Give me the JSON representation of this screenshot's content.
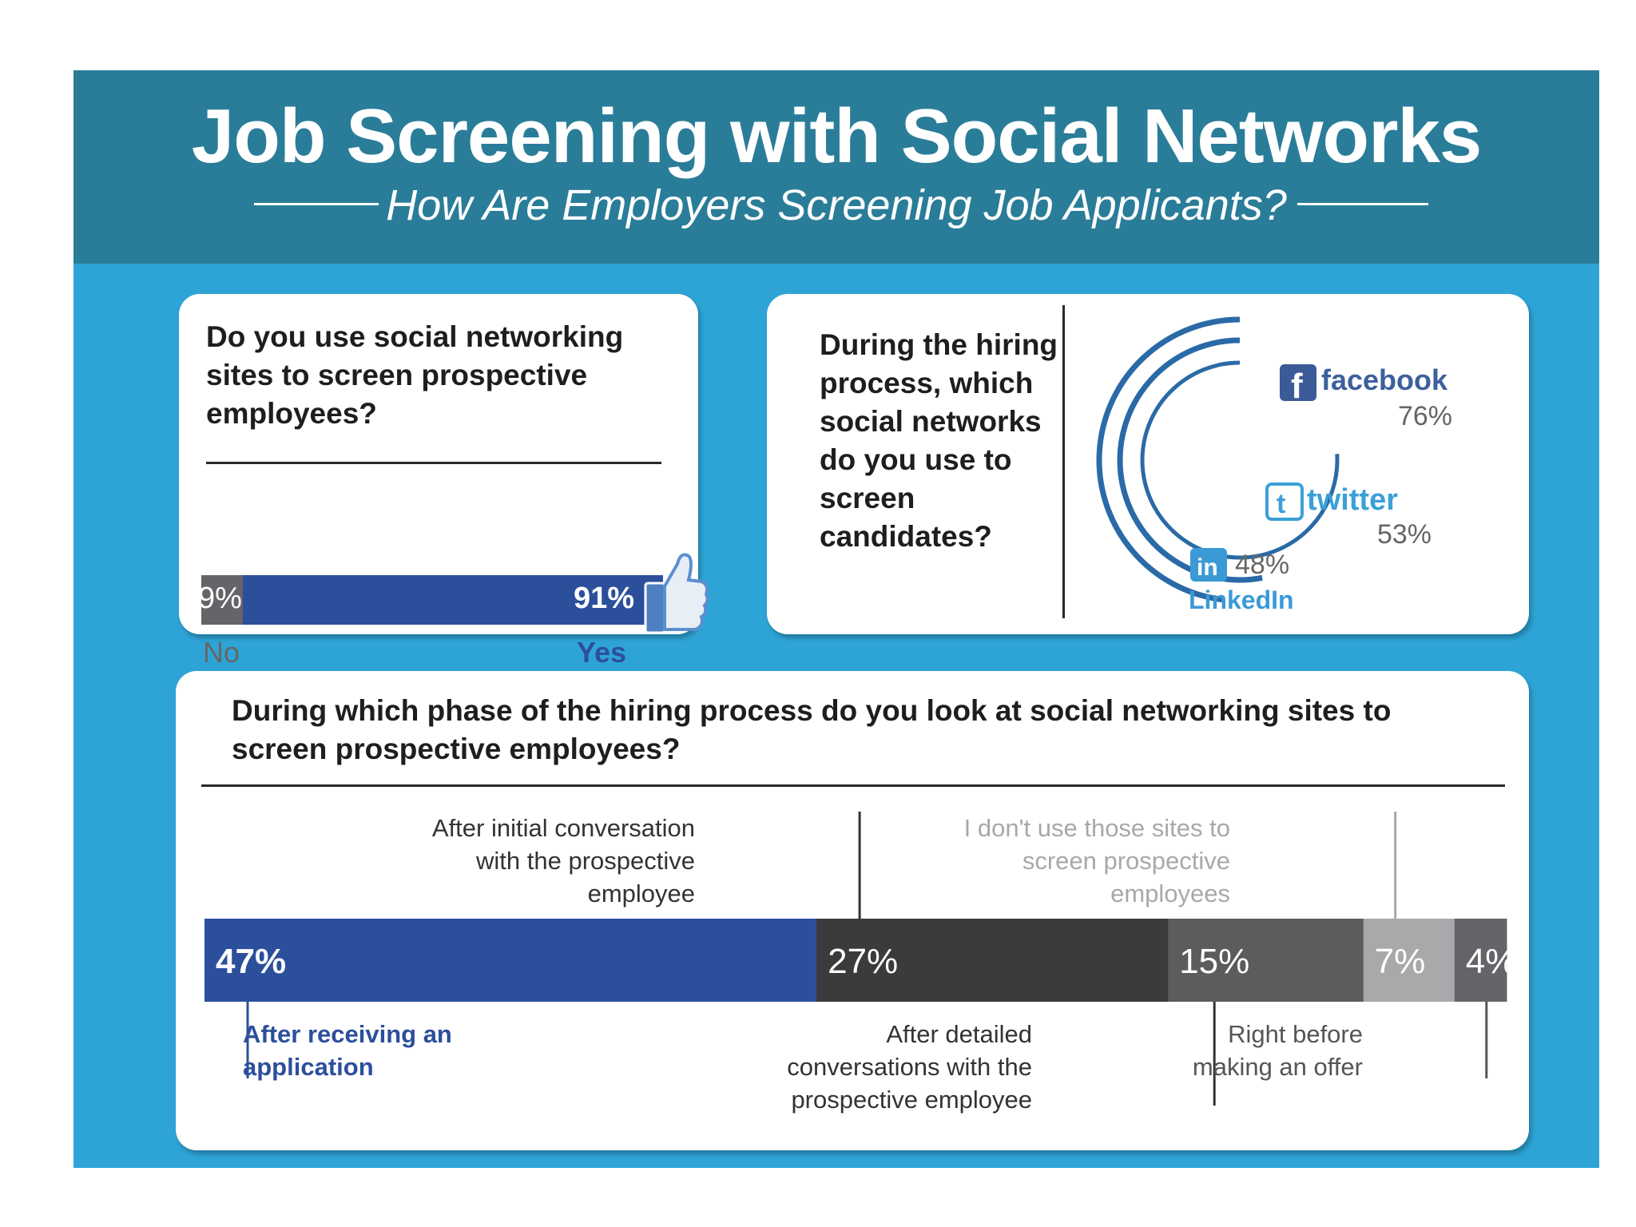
{
  "header": {
    "title": "Job Screening with Social Networks",
    "subtitle": "How Are Employers Screening Job Applicants?"
  },
  "colors": {
    "header_bg": "#2a7d98",
    "poster_bg": "#2ea4d6",
    "yes_blue": "#2c4f9c",
    "no_gray": "#656569",
    "arc_blue": "#2a6aa6"
  },
  "chart_data": [
    {
      "type": "bar",
      "orientation": "horizontal-stacked",
      "title": "Do you use social networking sites to screen prospective employees?",
      "categories": [
        "No",
        "Yes"
      ],
      "values": [
        9,
        91
      ],
      "value_labels": [
        "9%",
        "91%"
      ],
      "icon": "thumbs-up-icon"
    },
    {
      "type": "bar",
      "orientation": "radial",
      "title": "During the hiring process, which social networks do you use to screen candidates?",
      "categories": [
        "facebook",
        "twitter",
        "LinkedIn"
      ],
      "values": [
        76,
        53,
        48
      ],
      "value_labels": [
        "76%",
        "53%",
        "48%"
      ],
      "icons": [
        "facebook-icon",
        "twitter-icon",
        "linkedin-icon"
      ]
    },
    {
      "type": "bar",
      "orientation": "horizontal-stacked",
      "title": "During which phase of the hiring process do you look at social networking sites to screen prospective employees?",
      "series": [
        {
          "name": "After receiving an application",
          "value": 47,
          "label": "47%",
          "color": "#2c4f9c",
          "label_color": "#2c4f9c"
        },
        {
          "name": "After initial conversation with the prospective employee",
          "value": 27,
          "label": "27%",
          "color": "#3b3b3d",
          "label_color": "#333333"
        },
        {
          "name": "After detailed conversations with the prospective employee",
          "value": 15,
          "label": "15%",
          "color": "#5c5c5f",
          "label_color": "#333333"
        },
        {
          "name": "I don't use those sites to screen prospective employees",
          "value": 7,
          "label": "7%",
          "color": "#a9a9ac",
          "label_color": "#a0a0a3"
        },
        {
          "name": "Right before making an offer",
          "value": 4,
          "label": "4%",
          "color": "#656569",
          "label_color": "#555555"
        }
      ]
    }
  ]
}
